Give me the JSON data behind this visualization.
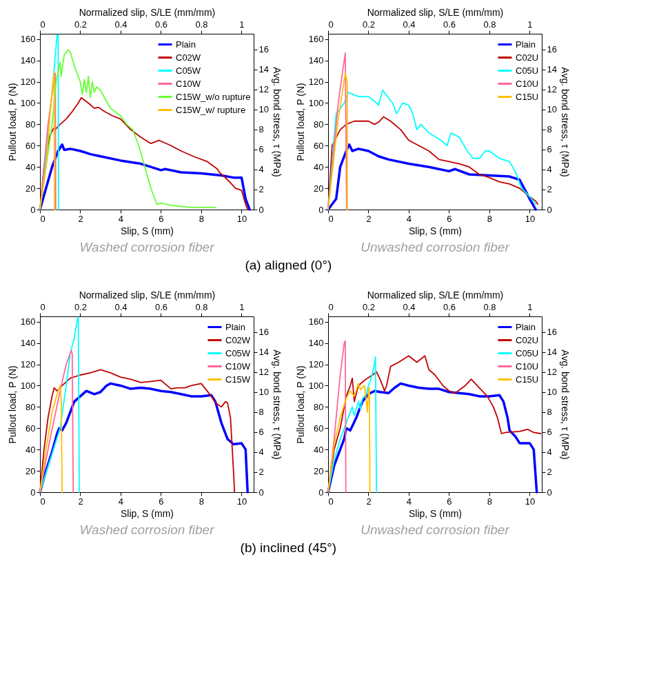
{
  "chart_data": [
    {
      "type": "line",
      "xlabel": "Slip, S (mm)",
      "ylabel": "Pullout load, P (N)",
      "x2label": "Normalized slip, S/LE (mm/mm)",
      "y2label": "Avg. bond stress, τ (MPa)",
      "xlim": [
        0,
        10.6
      ],
      "xticks": [
        0,
        2,
        4,
        6,
        8,
        10
      ],
      "ylim": [
        0,
        165
      ],
      "yticks": [
        0,
        20,
        40,
        60,
        80,
        100,
        120,
        140,
        160
      ],
      "x2lim": [
        0,
        1.06
      ],
      "x2ticks": [
        0,
        0.2,
        0.4,
        0.6,
        0.8,
        1
      ],
      "y2lim": [
        0,
        17.55
      ],
      "y2ticks": [
        0,
        2,
        4,
        6,
        8,
        10,
        12,
        14,
        16
      ],
      "legend": "top right",
      "line_style": "solid",
      "annotations": [
        "Washed corrosion fiber",
        "(a) aligned (0°)"
      ],
      "series": [
        {
          "name": "Plain",
          "color": "#0000ff",
          "x": [
            0,
            0.3,
            0.6,
            0.9,
            1.1,
            1.2,
            1.5,
            2,
            2.5,
            3,
            4,
            5,
            5.5,
            6,
            6.2,
            7,
            8,
            9,
            9.6,
            10,
            10.2,
            10.4
          ],
          "values": [
            0,
            20,
            40,
            55,
            61,
            56,
            57,
            55,
            52,
            50,
            46,
            43,
            40,
            37,
            38,
            35,
            34,
            32,
            30,
            30,
            10,
            0
          ]
        },
        {
          "name": "C02W",
          "color": "#c00000",
          "x": [
            0,
            0.2,
            0.5,
            0.7,
            0.75,
            1,
            1.3,
            1.6,
            1.9,
            2.05,
            2.4,
            2.7,
            2.9,
            3.2,
            3.6,
            4,
            4.5,
            5,
            5.5,
            5.9,
            6.5,
            7,
            7.6,
            8.3,
            8.8,
            8.9,
            9.3,
            9.7,
            10,
            10.2,
            10.3
          ],
          "values": [
            0,
            40,
            70,
            77,
            75,
            80,
            85,
            92,
            100,
            105,
            100,
            95,
            96,
            92,
            88,
            85,
            75,
            68,
            62,
            65,
            60,
            55,
            50,
            45,
            38,
            35,
            28,
            20,
            18,
            5,
            0
          ]
        },
        {
          "name": "C05W",
          "color": "#00ffff",
          "x": [
            0,
            0.3,
            0.6,
            0.85,
            0.9,
            0.92
          ],
          "values": [
            0,
            50,
            110,
            164,
            164,
            0
          ]
        },
        {
          "name": "C10W",
          "color": "#ff6699",
          "x": [
            0,
            0.4,
            0.72,
            0.76,
            0.78
          ],
          "values": [
            0,
            80,
            125,
            128,
            0
          ]
        },
        {
          "name": "C15W_w/o rupture",
          "color": "#66ff33",
          "x": [
            0,
            0.3,
            0.6,
            0.8,
            1,
            1.05,
            1.2,
            1.4,
            1.5,
            1.7,
            1.9,
            2,
            2.1,
            2.2,
            2.3,
            2.4,
            2.5,
            2.6,
            2.7,
            2.8,
            3,
            3.2,
            3.5,
            4,
            4.3,
            4.6,
            4.9,
            5.2,
            5.5,
            5.8,
            6,
            6.5,
            7,
            7.5,
            8,
            8.7
          ],
          "values": [
            0,
            40,
            80,
            120,
            138,
            125,
            145,
            150,
            148,
            135,
            125,
            120,
            108,
            122,
            110,
            125,
            105,
            120,
            110,
            115,
            112,
            105,
            95,
            88,
            80,
            75,
            60,
            40,
            20,
            5,
            6,
            4,
            3,
            2,
            2,
            2
          ]
        },
        {
          "name": "C15W_w/ rupture",
          "color": "#ffc000",
          "x": [
            0,
            0.3,
            0.5,
            0.65,
            0.7,
            0.72
          ],
          "values": [
            0,
            40,
            90,
            120,
            128,
            0
          ]
        }
      ]
    },
    {
      "type": "line",
      "xlabel": "Slip, S (mm)",
      "ylabel": "Pullout load, P (N)",
      "x2label": "Normalized slip, S/LE (mm/mm)",
      "y2label": "Avg. bond stress, τ (MPa)",
      "xlim": [
        0,
        10.6
      ],
      "xticks": [
        0,
        2,
        4,
        6,
        8,
        10
      ],
      "ylim": [
        0,
        165
      ],
      "yticks": [
        0,
        20,
        40,
        60,
        80,
        100,
        120,
        140,
        160
      ],
      "x2lim": [
        0,
        1.06
      ],
      "x2ticks": [
        0,
        0.2,
        0.4,
        0.6,
        0.8,
        1
      ],
      "y2lim": [
        0,
        17.55
      ],
      "y2ticks": [
        0,
        2,
        4,
        6,
        8,
        10,
        12,
        14,
        16
      ],
      "legend": "top right",
      "line_style": "solid",
      "annotations": [
        "Unwashed corrosion fiber"
      ],
      "series": [
        {
          "name": "Plain",
          "color": "#0000ff",
          "x": [
            0,
            0.4,
            0.6,
            0.9,
            1.05,
            1.2,
            1.5,
            2,
            2.5,
            3,
            4,
            5,
            6,
            6.3,
            7,
            8,
            9,
            9.5,
            10,
            10.3
          ],
          "values": [
            0,
            10,
            40,
            55,
            61,
            55,
            57,
            55,
            50,
            47,
            43,
            40,
            36,
            38,
            33,
            32,
            31,
            28,
            10,
            0
          ]
        },
        {
          "name": "C02U",
          "color": "#c00000",
          "x": [
            0,
            0.2,
            0.6,
            0.9,
            1.3,
            2,
            2.3,
            2.5,
            2.75,
            3.1,
            3.6,
            4,
            4.5,
            5,
            5.5,
            6,
            6.5,
            7,
            7.5,
            8,
            8.5,
            9,
            9.5,
            10,
            10.3,
            10.4
          ],
          "values": [
            0,
            60,
            75,
            80,
            83,
            83,
            80,
            82,
            87,
            83,
            75,
            65,
            60,
            55,
            47,
            45,
            43,
            40,
            33,
            30,
            26,
            24,
            20,
            12,
            8,
            5
          ]
        },
        {
          "name": "C05U",
          "color": "#00ffff",
          "x": [
            0,
            0.4,
            0.8,
            1,
            1.5,
            2,
            2.3,
            2.5,
            2.7,
            3.2,
            3.4,
            3.7,
            4,
            4.2,
            4.4,
            4.6,
            5,
            5.6,
            5.9,
            6.1,
            6.5,
            6.9,
            7.2,
            7.5,
            7.8,
            8,
            8.5,
            9,
            9.3,
            9.6,
            10,
            10.3
          ],
          "values": [
            0,
            90,
            100,
            110,
            106,
            106,
            102,
            98,
            112,
            100,
            90,
            100,
            98,
            90,
            75,
            80,
            72,
            65,
            60,
            72,
            68,
            55,
            48,
            48,
            55,
            55,
            48,
            45,
            35,
            20,
            12,
            5
          ]
        },
        {
          "name": "C10U",
          "color": "#ff6699",
          "x": [
            0,
            0.5,
            0.85,
            0.92
          ],
          "values": [
            0,
            100,
            147,
            0
          ]
        },
        {
          "name": "C15U",
          "color": "#ffc000",
          "x": [
            0,
            0.5,
            0.85,
            0.95,
            0.95
          ],
          "values": [
            0,
            85,
            128,
            120,
            0
          ]
        }
      ]
    },
    {
      "type": "line",
      "xlabel": "Slip, S (mm)",
      "ylabel": "Pullout load, P (N)",
      "x2label": "Normalized slip, S/LE (mm/mm)",
      "y2label": "Avg. bond stress, τ (MPa)",
      "xlim": [
        0,
        10.6
      ],
      "xticks": [
        0,
        2,
        4,
        6,
        8,
        10
      ],
      "ylim": [
        0,
        165
      ],
      "yticks": [
        0,
        20,
        40,
        60,
        80,
        100,
        120,
        140,
        160
      ],
      "x2lim": [
        0,
        1.06
      ],
      "x2ticks": [
        0,
        0.2,
        0.4,
        0.6,
        0.8,
        1
      ],
      "y2lim": [
        0,
        17.55
      ],
      "y2ticks": [
        0,
        2,
        4,
        6,
        8,
        10,
        12,
        14,
        16
      ],
      "legend": "top right",
      "line_style": "solid",
      "annotations": [
        "Washed corrosion fiber",
        "(b) inclined (45°)"
      ],
      "series": [
        {
          "name": "Plain",
          "color": "#0000ff",
          "x": [
            0,
            0.3,
            0.6,
            0.85,
            0.95,
            1.1,
            1.3,
            1.5,
            1.7,
            2,
            2.3,
            2.7,
            3,
            3.3,
            3.5,
            4,
            4.5,
            5,
            5.5,
            6,
            6.5,
            7,
            7.5,
            8,
            8.5,
            8.7,
            9,
            9.3,
            9.6,
            10,
            10.2,
            10.3
          ],
          "values": [
            0,
            20,
            38,
            55,
            60,
            58,
            65,
            75,
            85,
            90,
            95,
            92,
            94,
            100,
            102,
            100,
            97,
            98,
            97,
            95,
            94,
            92,
            90,
            90,
            91,
            85,
            65,
            50,
            45,
            46,
            40,
            0
          ]
        },
        {
          "name": "C02W",
          "color": "#c00000",
          "x": [
            0,
            0.2,
            0.4,
            0.6,
            0.7,
            0.85,
            1.1,
            1.5,
            2,
            2.5,
            3,
            3.5,
            4,
            4.5,
            5,
            5.5,
            6,
            6.5,
            6.8,
            7.2,
            7.5,
            8,
            8.5,
            8.7,
            9,
            9.2,
            9.3,
            9.45,
            9.6,
            9.65
          ],
          "values": [
            0,
            40,
            70,
            90,
            98,
            95,
            100,
            107,
            110,
            112,
            115,
            112,
            108,
            106,
            103,
            104,
            105,
            97,
            98,
            98,
            100,
            102,
            90,
            84,
            80,
            85,
            84,
            70,
            20,
            0
          ]
        },
        {
          "name": "C05W",
          "color": "#00ffff",
          "x": [
            0,
            0.5,
            1,
            1.3,
            1.5,
            1.7,
            1.85,
            1.9,
            1.95
          ],
          "values": [
            0,
            30,
            60,
            100,
            130,
            145,
            162,
            164,
            0
          ]
        },
        {
          "name": "C10W",
          "color": "#ff6699",
          "x": [
            0,
            0.5,
            1,
            1.3,
            1.55,
            1.6,
            1.65
          ],
          "values": [
            0,
            50,
            95,
            120,
            133,
            130,
            0
          ]
        },
        {
          "name": "C15W",
          "color": "#ffc000",
          "x": [
            0,
            0.3,
            0.6,
            0.9,
            1,
            1.05,
            1.1
          ],
          "values": [
            0,
            40,
            75,
            95,
            100,
            90,
            0
          ]
        }
      ]
    },
    {
      "type": "line",
      "xlabel": "Slip, S (mm)",
      "ylabel": "Pullout load, P (N)",
      "x2label": "Normalized slip, S/LE (mm/mm)",
      "y2label": "Avg. bond stress, τ (MPa)",
      "xlim": [
        0,
        10.6
      ],
      "xticks": [
        0,
        2,
        4,
        6,
        8,
        10
      ],
      "ylim": [
        0,
        165
      ],
      "yticks": [
        0,
        20,
        40,
        60,
        80,
        100,
        120,
        140,
        160
      ],
      "x2lim": [
        0,
        1.06
      ],
      "x2ticks": [
        0,
        0.2,
        0.4,
        0.6,
        0.8,
        1
      ],
      "y2lim": [
        0,
        17.55
      ],
      "y2ticks": [
        0,
        2,
        4,
        6,
        8,
        10,
        12,
        14,
        16
      ],
      "legend": "top right",
      "line_style": "solid",
      "annotations": [
        "Unwashed corrosion fiber"
      ],
      "series": [
        {
          "name": "Plain",
          "color": "#0000ff",
          "x": [
            0,
            0.3,
            0.6,
            0.8,
            0.9,
            1.1,
            1.4,
            1.7,
            2,
            2.3,
            2.6,
            3,
            3.3,
            3.6,
            4,
            4.5,
            5,
            5.5,
            6,
            6.5,
            7,
            7.5,
            8,
            8.5,
            8.7,
            8.9,
            9,
            9.3,
            9.5,
            10,
            10.2,
            10.35
          ],
          "values": [
            0,
            25,
            40,
            50,
            60,
            58,
            70,
            85,
            92,
            95,
            94,
            93,
            98,
            102,
            100,
            98,
            97,
            97,
            94,
            93,
            92,
            90,
            90,
            91,
            85,
            70,
            58,
            52,
            46,
            46,
            40,
            0
          ]
        },
        {
          "name": "C02U",
          "color": "#c00000",
          "x": [
            0,
            0.3,
            0.6,
            0.9,
            1.1,
            1.2,
            1.3,
            1.5,
            1.8,
            2.2,
            2.4,
            2.6,
            2.8,
            2.9,
            3.1,
            3.5,
            4,
            4.4,
            4.8,
            5,
            5.3,
            5.7,
            6,
            6.3,
            6.8,
            7.1,
            7.5,
            7.9,
            8.2,
            8.4,
            8.6,
            8.8,
            9.5,
            9.9,
            10.2,
            10.55
          ],
          "values": [
            0,
            40,
            60,
            90,
            100,
            107,
            85,
            100,
            105,
            110,
            113,
            105,
            95,
            100,
            118,
            122,
            128,
            122,
            128,
            115,
            110,
            100,
            95,
            93,
            100,
            106,
            98,
            90,
            80,
            70,
            55,
            56,
            57,
            59,
            56,
            55
          ]
        },
        {
          "name": "C05U",
          "color": "#00ffff",
          "x": [
            0,
            0.3,
            0.6,
            0.9,
            1.1,
            1.2,
            1.3,
            1.5,
            1.6,
            1.7,
            1.9,
            2,
            2.1,
            2.2,
            2.3,
            2.35,
            2.4
          ],
          "values": [
            0,
            30,
            50,
            65,
            75,
            80,
            72,
            85,
            78,
            88,
            92,
            100,
            105,
            112,
            120,
            127,
            0
          ]
        },
        {
          "name": "C10U",
          "color": "#ff6699",
          "x": [
            0,
            0.3,
            0.6,
            0.8,
            0.85,
            0.88
          ],
          "values": [
            0,
            50,
            110,
            140,
            142,
            0
          ]
        },
        {
          "name": "C15U",
          "color": "#ffc000",
          "x": [
            0,
            0.3,
            0.6,
            0.9,
            1.1,
            1.3,
            1.5,
            1.6,
            1.8,
            1.9,
            1.95,
            2,
            2.05,
            2.07
          ],
          "values": [
            0,
            45,
            70,
            88,
            95,
            90,
            102,
            96,
            100,
            85,
            75,
            95,
            98,
            0
          ]
        }
      ]
    }
  ]
}
